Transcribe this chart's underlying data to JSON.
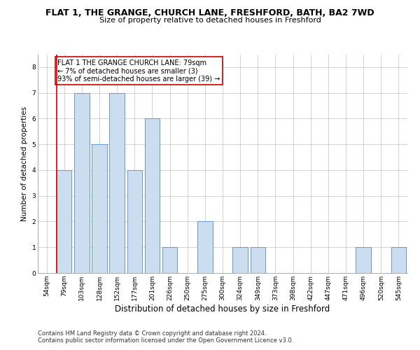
{
  "title": "FLAT 1, THE GRANGE, CHURCH LANE, FRESHFORD, BATH, BA2 7WD",
  "subtitle": "Size of property relative to detached houses in Freshford",
  "xlabel": "Distribution of detached houses by size in Freshford",
  "ylabel": "Number of detached properties",
  "categories": [
    "54sqm",
    "79sqm",
    "103sqm",
    "128sqm",
    "152sqm",
    "177sqm",
    "201sqm",
    "226sqm",
    "250sqm",
    "275sqm",
    "300sqm",
    "324sqm",
    "349sqm",
    "373sqm",
    "398sqm",
    "422sqm",
    "447sqm",
    "471sqm",
    "496sqm",
    "520sqm",
    "545sqm"
  ],
  "values": [
    0,
    4,
    7,
    5,
    7,
    4,
    6,
    1,
    0,
    2,
    0,
    1,
    1,
    0,
    0,
    0,
    0,
    0,
    1,
    0,
    1
  ],
  "bar_color": "#ccddf0",
  "bar_edge_color": "#6699cc",
  "highlight_line_index": 1,
  "highlight_line_color": "#cc0000",
  "annotation_text": "FLAT 1 THE GRANGE CHURCH LANE: 79sqm\n← 7% of detached houses are smaller (3)\n93% of semi-detached houses are larger (39) →",
  "annotation_box_color": "#ffffff",
  "annotation_box_edge": "#cc0000",
  "ylim": [
    0,
    8.5
  ],
  "yticks": [
    0,
    1,
    2,
    3,
    4,
    5,
    6,
    7,
    8
  ],
  "footer1": "Contains HM Land Registry data © Crown copyright and database right 2024.",
  "footer2": "Contains public sector information licensed under the Open Government Licence v3.0.",
  "background_color": "#ffffff",
  "grid_color": "#cccccc",
  "title_fontsize": 9,
  "subtitle_fontsize": 8,
  "xlabel_fontsize": 8.5,
  "ylabel_fontsize": 7.5,
  "tick_fontsize": 6.5,
  "annotation_fontsize": 7,
  "footer_fontsize": 6
}
